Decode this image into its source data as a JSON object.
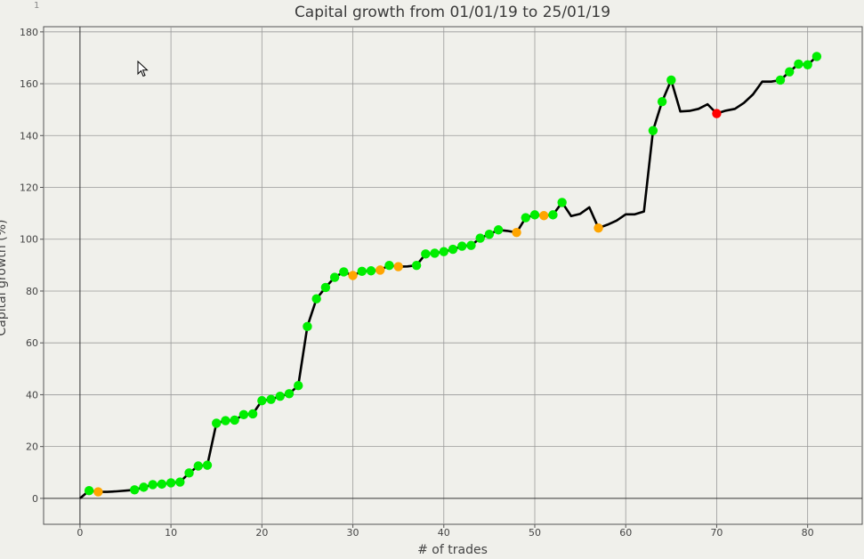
{
  "corner_label": "1",
  "chart_data": {
    "type": "line",
    "title": "Capital growth from 01/01/19 to 25/01/19",
    "xlabel": "# of trades",
    "ylabel": "Capital growth (%)",
    "xlim": [
      -4,
      86
    ],
    "ylim": [
      -10,
      182
    ],
    "xticks": [
      0,
      10,
      20,
      30,
      40,
      50,
      60,
      70,
      80
    ],
    "yticks": [
      0,
      20,
      40,
      60,
      80,
      100,
      120,
      140,
      160,
      180
    ],
    "grid": true,
    "colors": {
      "line": "#000000",
      "green": "#00ee00",
      "orange": "#ffa500",
      "red": "#ff0000",
      "grid": "#9a9a9a"
    },
    "line": {
      "x": [
        0,
        1,
        2,
        3,
        4,
        5,
        6,
        7,
        8,
        9,
        10,
        11,
        12,
        13,
        14,
        15,
        16,
        17,
        18,
        19,
        20,
        21,
        22,
        23,
        24,
        25,
        26,
        27,
        28,
        29,
        30,
        31,
        32,
        33,
        34,
        35,
        36,
        37,
        38,
        39,
        40,
        41,
        42,
        43,
        44,
        45,
        46,
        47,
        48,
        49,
        50,
        51,
        52,
        53,
        54,
        55,
        56,
        57,
        58,
        59,
        60,
        61,
        62,
        63,
        64,
        65,
        66,
        67,
        68,
        69,
        70,
        71,
        72,
        73,
        74,
        75,
        76,
        77,
        78,
        79,
        80,
        81
      ],
      "y": [
        0,
        3,
        2.5,
        2.5,
        2.7,
        3,
        3.3,
        4.3,
        5.3,
        5.5,
        6,
        6.3,
        9.8,
        12.5,
        12.8,
        29,
        30,
        30.2,
        32.3,
        32.6,
        37.7,
        38.2,
        39.4,
        40.4,
        43.5,
        66.3,
        77,
        81.4,
        85.3,
        87.4,
        86,
        87.6,
        87.8,
        88.1,
        89.9,
        89.4,
        89.5,
        89.9,
        94.3,
        94.6,
        95.2,
        96.1,
        97.3,
        97.6,
        100.4,
        101.9,
        103.6,
        103.2,
        102.6,
        108.3,
        109.4,
        109.1,
        109.4,
        114.2,
        108.9,
        109.8,
        112.3,
        104.3,
        105.6,
        107.2,
        109.6,
        109.6,
        110.7,
        141.9,
        153.1,
        161.4,
        149.3,
        149.5,
        150.3,
        152.1,
        148.5,
        149.6,
        150.3,
        152.6,
        155.9,
        160.8,
        160.8,
        161.4,
        164.6,
        167.6,
        167.3,
        170.5
      ]
    },
    "markers": [
      {
        "x": 1,
        "y": 3,
        "color": "green"
      },
      {
        "x": 2,
        "y": 2.5,
        "color": "orange"
      },
      {
        "x": 6,
        "y": 3.3,
        "color": "green"
      },
      {
        "x": 7,
        "y": 4.3,
        "color": "green"
      },
      {
        "x": 8,
        "y": 5.3,
        "color": "green"
      },
      {
        "x": 9,
        "y": 5.5,
        "color": "green"
      },
      {
        "x": 10,
        "y": 6,
        "color": "green"
      },
      {
        "x": 11,
        "y": 6.3,
        "color": "green"
      },
      {
        "x": 12,
        "y": 9.8,
        "color": "green"
      },
      {
        "x": 13,
        "y": 12.5,
        "color": "green"
      },
      {
        "x": 14,
        "y": 12.8,
        "color": "green"
      },
      {
        "x": 15,
        "y": 29,
        "color": "green"
      },
      {
        "x": 16,
        "y": 30,
        "color": "green"
      },
      {
        "x": 17,
        "y": 30.2,
        "color": "green"
      },
      {
        "x": 18,
        "y": 32.3,
        "color": "green"
      },
      {
        "x": 19,
        "y": 32.6,
        "color": "green"
      },
      {
        "x": 20,
        "y": 37.7,
        "color": "green"
      },
      {
        "x": 21,
        "y": 38.2,
        "color": "green"
      },
      {
        "x": 22,
        "y": 39.4,
        "color": "green"
      },
      {
        "x": 23,
        "y": 40.4,
        "color": "green"
      },
      {
        "x": 24,
        "y": 43.5,
        "color": "green"
      },
      {
        "x": 25,
        "y": 66.3,
        "color": "green"
      },
      {
        "x": 26,
        "y": 77,
        "color": "green"
      },
      {
        "x": 27,
        "y": 81.4,
        "color": "green"
      },
      {
        "x": 28,
        "y": 85.3,
        "color": "green"
      },
      {
        "x": 29,
        "y": 87.4,
        "color": "green"
      },
      {
        "x": 30,
        "y": 86,
        "color": "orange"
      },
      {
        "x": 31,
        "y": 87.6,
        "color": "green"
      },
      {
        "x": 32,
        "y": 87.8,
        "color": "green"
      },
      {
        "x": 33,
        "y": 88.1,
        "color": "orange"
      },
      {
        "x": 34,
        "y": 89.9,
        "color": "green"
      },
      {
        "x": 35,
        "y": 89.4,
        "color": "orange"
      },
      {
        "x": 37,
        "y": 89.9,
        "color": "green"
      },
      {
        "x": 38,
        "y": 94.3,
        "color": "green"
      },
      {
        "x": 39,
        "y": 94.6,
        "color": "green"
      },
      {
        "x": 40,
        "y": 95.2,
        "color": "green"
      },
      {
        "x": 41,
        "y": 96.1,
        "color": "green"
      },
      {
        "x": 42,
        "y": 97.3,
        "color": "green"
      },
      {
        "x": 43,
        "y": 97.6,
        "color": "green"
      },
      {
        "x": 44,
        "y": 100.4,
        "color": "green"
      },
      {
        "x": 45,
        "y": 101.9,
        "color": "green"
      },
      {
        "x": 46,
        "y": 103.6,
        "color": "green"
      },
      {
        "x": 48,
        "y": 102.6,
        "color": "orange"
      },
      {
        "x": 49,
        "y": 108.3,
        "color": "green"
      },
      {
        "x": 50,
        "y": 109.4,
        "color": "green"
      },
      {
        "x": 51,
        "y": 109.1,
        "color": "orange"
      },
      {
        "x": 52,
        "y": 109.4,
        "color": "green"
      },
      {
        "x": 53,
        "y": 114.2,
        "color": "green"
      },
      {
        "x": 57,
        "y": 104.3,
        "color": "orange"
      },
      {
        "x": 63,
        "y": 141.9,
        "color": "green"
      },
      {
        "x": 64,
        "y": 153.1,
        "color": "green"
      },
      {
        "x": 65,
        "y": 161.4,
        "color": "green"
      },
      {
        "x": 70,
        "y": 148.5,
        "color": "red"
      },
      {
        "x": 77,
        "y": 161.4,
        "color": "green"
      },
      {
        "x": 78,
        "y": 164.6,
        "color": "green"
      },
      {
        "x": 79,
        "y": 167.6,
        "color": "green"
      },
      {
        "x": 80,
        "y": 167.3,
        "color": "green"
      },
      {
        "x": 81,
        "y": 170.5,
        "color": "green"
      }
    ]
  }
}
